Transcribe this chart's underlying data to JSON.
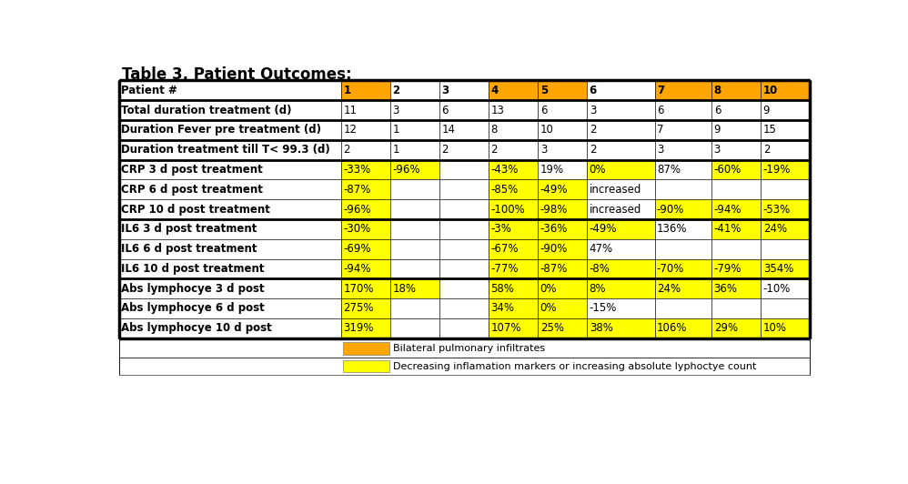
{
  "title": "Table 3. Patient Outcomes:",
  "col_widths": [
    2.8,
    0.62,
    0.62,
    0.62,
    0.62,
    0.62,
    0.85,
    0.72,
    0.62,
    0.62
  ],
  "rows": [
    [
      "Patient #",
      "1",
      "2",
      "3",
      "4",
      "5",
      "6",
      "7",
      "8",
      "10"
    ],
    [
      "Total duration treatment (d)",
      "11",
      "3",
      "6",
      "13",
      "6",
      "3",
      "6",
      "6",
      "9"
    ],
    [
      "Duration Fever pre treatment (d)",
      "12",
      "1",
      "14",
      "8",
      "10",
      "2",
      "7",
      "9",
      "15"
    ],
    [
      "Duration treatment till T< 99.3 (d)",
      "2",
      "1",
      "2",
      "2",
      "3",
      "2",
      "3",
      "3",
      "2"
    ],
    [
      "CRP 3 d post treatment",
      "-33%",
      "-96%",
      "",
      "-43%",
      "19%",
      "0%",
      "87%",
      "-60%",
      "-19%"
    ],
    [
      "CRP 6 d post treatment",
      "-87%",
      "",
      "",
      "-85%",
      "-49%",
      "increased",
      "",
      "",
      ""
    ],
    [
      "CRP 10 d post treatment",
      "-96%",
      "",
      "",
      "-100%",
      "-98%",
      "increased",
      "-90%",
      "-94%",
      "-53%"
    ],
    [
      "IL6 3 d post treatment",
      "-30%",
      "",
      "",
      "-3%",
      "-36%",
      "-49%",
      "136%",
      "-41%",
      "24%"
    ],
    [
      "IL6 6 d post treatment",
      "-69%",
      "",
      "",
      "-67%",
      "-90%",
      "47%",
      "",
      "",
      ""
    ],
    [
      "IL6 10 d post treatment",
      "-94%",
      "",
      "",
      "-77%",
      "-87%",
      "-8%",
      "-70%",
      "-79%",
      "354%"
    ],
    [
      "Abs lymphocye 3 d post",
      "170%",
      "18%",
      "",
      "58%",
      "0%",
      "8%",
      "24%",
      "36%",
      "-10%"
    ],
    [
      "Abs lymphocye 6 d post",
      "275%",
      "",
      "",
      "34%",
      "0%",
      "-15%",
      "",
      "",
      ""
    ],
    [
      "Abs lymphocye 10 d post",
      "319%",
      "",
      "",
      "107%",
      "25%",
      "38%",
      "106%",
      "29%",
      "10%"
    ]
  ],
  "cell_colors": [
    [
      "white",
      "orange",
      "white",
      "white",
      "orange",
      "orange",
      "white",
      "orange",
      "orange",
      "orange"
    ],
    [
      "white",
      "white",
      "white",
      "white",
      "white",
      "white",
      "white",
      "white",
      "white",
      "white"
    ],
    [
      "white",
      "white",
      "white",
      "white",
      "white",
      "white",
      "white",
      "white",
      "white",
      "white"
    ],
    [
      "white",
      "white",
      "white",
      "white",
      "white",
      "white",
      "white",
      "white",
      "white",
      "white"
    ],
    [
      "white",
      "yellow",
      "yellow",
      "white",
      "yellow",
      "white",
      "yellow",
      "white",
      "yellow",
      "yellow"
    ],
    [
      "white",
      "yellow",
      "white",
      "white",
      "yellow",
      "yellow",
      "white",
      "white",
      "white",
      "white"
    ],
    [
      "white",
      "yellow",
      "white",
      "white",
      "yellow",
      "yellow",
      "white",
      "yellow",
      "yellow",
      "yellow"
    ],
    [
      "white",
      "yellow",
      "white",
      "white",
      "yellow",
      "yellow",
      "yellow",
      "white",
      "yellow",
      "yellow"
    ],
    [
      "white",
      "yellow",
      "white",
      "white",
      "yellow",
      "yellow",
      "white",
      "white",
      "white",
      "white"
    ],
    [
      "white",
      "yellow",
      "white",
      "white",
      "yellow",
      "yellow",
      "yellow",
      "yellow",
      "yellow",
      "yellow"
    ],
    [
      "white",
      "yellow",
      "yellow",
      "white",
      "yellow",
      "yellow",
      "yellow",
      "yellow",
      "yellow",
      "white"
    ],
    [
      "white",
      "yellow",
      "white",
      "white",
      "yellow",
      "yellow",
      "white",
      "white",
      "white",
      "white"
    ],
    [
      "white",
      "yellow",
      "white",
      "white",
      "yellow",
      "yellow",
      "yellow",
      "yellow",
      "yellow",
      "yellow"
    ]
  ],
  "thick_row_borders_after": [
    0,
    1,
    2,
    3,
    6,
    9,
    12
  ],
  "legend_orange": "Bilateral pulmonary infiltrates",
  "legend_yellow": "Decreasing inflamation markers or increasing absolute lyphoctye count",
  "bg_color": "#ffffff",
  "border_color": "#000000",
  "yellow_color": "#FFFF00",
  "orange_color": "#FFA500",
  "title_fontsize": 12,
  "cell_fontsize": 8.5
}
